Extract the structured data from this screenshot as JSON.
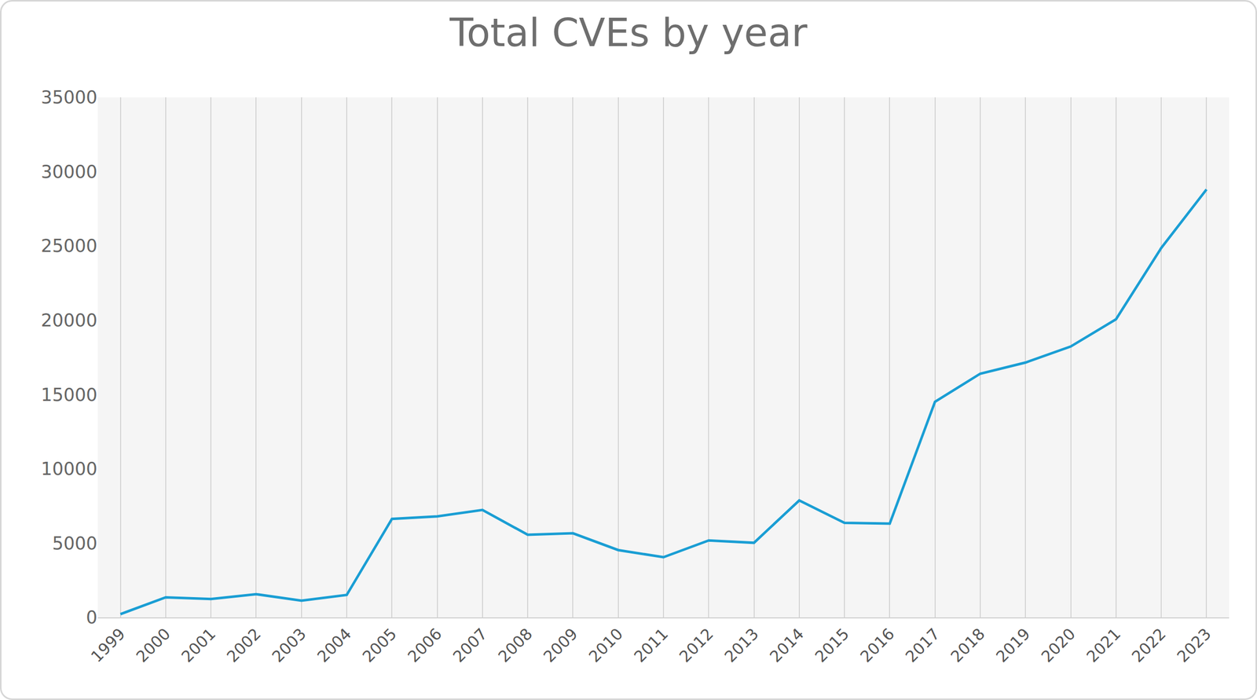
{
  "chart_data": {
    "type": "line",
    "title": "Total CVEs by year",
    "categories": [
      "1999",
      "2000",
      "2001",
      "2002",
      "2003",
      "2004",
      "2005",
      "2006",
      "2007",
      "2008",
      "2009",
      "2010",
      "2011",
      "2012",
      "2013",
      "2014",
      "2015",
      "2016",
      "2017",
      "2018",
      "2019",
      "2020",
      "2021",
      "2022",
      "2023"
    ],
    "values": [
      220,
      1350,
      1240,
      1560,
      1130,
      1510,
      6630,
      6800,
      7230,
      5560,
      5660,
      4530,
      4050,
      5180,
      5020,
      7870,
      6360,
      6310,
      14510,
      16400,
      17150,
      18230,
      20060,
      24860,
      28800
    ],
    "color": "#1a9ed4",
    "ylim": [
      0,
      35000
    ],
    "yticks": [
      0,
      5000,
      10000,
      15000,
      20000,
      25000,
      30000,
      35000
    ],
    "grid": true
  }
}
